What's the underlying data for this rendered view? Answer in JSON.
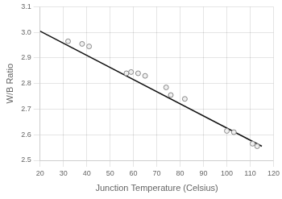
{
  "chart_data": {
    "type": "scatter",
    "xlabel": "Junction Temperature (Celsius)",
    "ylabel": "W/B Ratio",
    "series": [
      {
        "type": "scatter",
        "marker": "circle",
        "color": "#888888",
        "x": [
          32,
          38,
          41,
          57,
          59,
          62,
          65,
          74,
          76,
          82,
          100,
          103,
          111,
          113
        ],
        "values": [
          2.965,
          2.955,
          2.945,
          2.84,
          2.845,
          2.84,
          2.83,
          2.785,
          2.755,
          2.74,
          2.615,
          2.61,
          2.565,
          2.555
        ]
      },
      {
        "type": "line",
        "line_style": "solid",
        "color": "#111111",
        "x": [
          20,
          115
        ],
        "values": [
          3.005,
          2.555
        ]
      }
    ],
    "xlim": [
      20,
      120
    ],
    "ylim": [
      2.5,
      3.1
    ],
    "xticks": [
      20,
      30,
      40,
      50,
      60,
      70,
      80,
      90,
      100,
      110,
      120
    ],
    "yticks": [
      2.5,
      2.6,
      2.7,
      2.8,
      2.9,
      {
        "value": 3.0,
        "label": "3.0"
      },
      3.1
    ],
    "grid": true
  }
}
